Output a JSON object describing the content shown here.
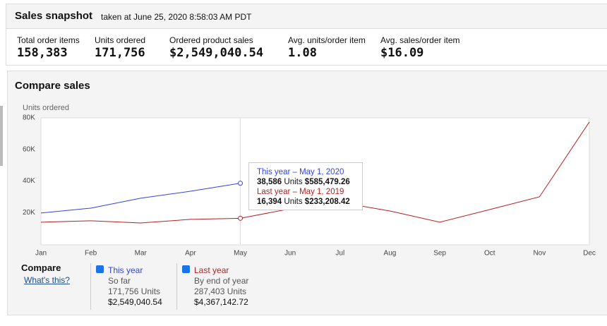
{
  "header": {
    "title": "Sales snapshot",
    "subtitle": "taken at June 25, 2020 8:58:03 AM PDT"
  },
  "metrics": [
    {
      "label": "Total order items",
      "value": "158,383"
    },
    {
      "label": "Units ordered",
      "value": "171,756"
    },
    {
      "label": "Ordered product sales",
      "value": "$2,549,040.54"
    },
    {
      "label": "Avg. units/order item",
      "value": "1.08"
    },
    {
      "label": "Avg. sales/order item",
      "value": "$16.09"
    }
  ],
  "section_title": "Compare sales",
  "chart_data": {
    "type": "line",
    "y_label": "Units ordered",
    "categories": [
      "Jan",
      "Feb",
      "Mar",
      "Apr",
      "May",
      "Jun",
      "Jul",
      "Aug",
      "Sep",
      "Oct",
      "Nov",
      "Dec"
    ],
    "ylim": [
      0,
      80000
    ],
    "yticks": [
      {
        "value": 20000,
        "label": "20K"
      },
      {
        "value": 40000,
        "label": "40K"
      },
      {
        "value": 60000,
        "label": "60K"
      },
      {
        "value": 80000,
        "label": "80K"
      }
    ],
    "grid": false,
    "series": [
      {
        "name": "This year",
        "color": "#3344dd",
        "values": [
          19700,
          22800,
          29100,
          33500,
          38586,
          null,
          null,
          null,
          null,
          null,
          null,
          null
        ]
      },
      {
        "name": "Last year",
        "color": "#b22222",
        "values": [
          13900,
          14800,
          13400,
          15700,
          16394,
          22400,
          26400,
          21000,
          13900,
          21900,
          30000,
          77400
        ]
      }
    ]
  },
  "tooltip": {
    "this_year": {
      "title": "This year – May 1, 2020",
      "units": "38,586",
      "units_label": "Units",
      "sales": "$585,479.26"
    },
    "last_year": {
      "title": "Last year – May 1, 2019",
      "units": "16,394",
      "units_label": "Units",
      "sales": "$233,208.42"
    }
  },
  "compare": {
    "title": "Compare",
    "link": "What's this?",
    "this_year": {
      "period": "So far",
      "units": "171,756 Units",
      "sales": "$2,549,040.54"
    },
    "last_year": {
      "period": "By end of year",
      "units": "287,403 Units",
      "sales": "$4,367,142.72"
    }
  }
}
